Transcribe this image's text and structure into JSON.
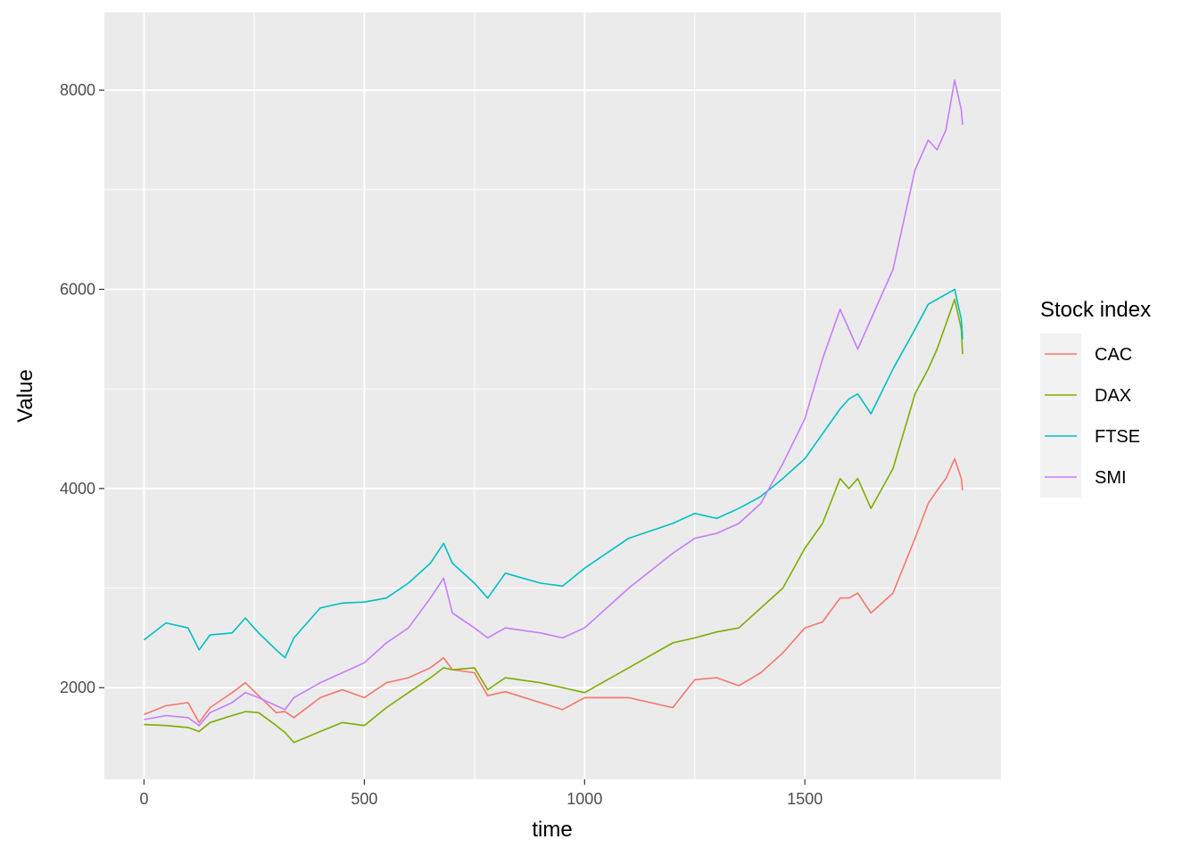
{
  "chart_data": {
    "type": "line",
    "title": "",
    "xlabel": "time",
    "ylabel": "Value",
    "xlim": [
      -90,
      1945
    ],
    "ylim": [
      1080,
      8780
    ],
    "x_ticks": [
      0,
      500,
      1000,
      1500
    ],
    "x_tick_labels": [
      "0",
      "500",
      "1000",
      "1500"
    ],
    "y_ticks": [
      2000,
      4000,
      6000,
      8000
    ],
    "y_tick_labels": [
      "2000",
      "4000",
      "6000",
      "8000"
    ],
    "grid": true,
    "legend": {
      "title": "Stock index",
      "position": "right"
    },
    "x": [
      0,
      50,
      100,
      125,
      150,
      200,
      230,
      260,
      300,
      320,
      340,
      400,
      450,
      500,
      550,
      600,
      650,
      680,
      700,
      750,
      780,
      820,
      900,
      950,
      1000,
      1100,
      1200,
      1250,
      1300,
      1350,
      1400,
      1450,
      1500,
      1540,
      1580,
      1600,
      1620,
      1650,
      1700,
      1750,
      1780,
      1800,
      1820,
      1840,
      1855,
      1858
    ],
    "series": [
      {
        "name": "CAC",
        "color": "#F8766D",
        "values": [
          1730,
          1820,
          1850,
          1650,
          1800,
          1950,
          2050,
          1920,
          1750,
          1760,
          1700,
          1900,
          1980,
          1900,
          2050,
          2100,
          2200,
          2300,
          2180,
          2150,
          1920,
          1960,
          1850,
          1780,
          1900,
          1900,
          1800,
          2080,
          2100,
          2020,
          2150,
          2350,
          2600,
          2660,
          2900,
          2900,
          2950,
          2750,
          2950,
          3500,
          3850,
          3980,
          4100,
          4300,
          4100,
          3980
        ]
      },
      {
        "name": "DAX",
        "color": "#7CAE00",
        "values": [
          1630,
          1620,
          1600,
          1560,
          1650,
          1720,
          1760,
          1750,
          1620,
          1550,
          1450,
          1560,
          1650,
          1620,
          1800,
          1950,
          2100,
          2200,
          2180,
          2200,
          1980,
          2100,
          2050,
          2000,
          1950,
          2200,
          2450,
          2500,
          2560,
          2600,
          2800,
          3000,
          3400,
          3650,
          4100,
          4000,
          4100,
          3800,
          4200,
          4950,
          5200,
          5400,
          5650,
          5900,
          5600,
          5350
        ]
      },
      {
        "name": "FTSE",
        "color": "#00BFC4",
        "values": [
          2480,
          2650,
          2600,
          2380,
          2530,
          2550,
          2700,
          2550,
          2380,
          2300,
          2500,
          2800,
          2850,
          2860,
          2900,
          3050,
          3250,
          3450,
          3250,
          3050,
          2900,
          3150,
          3050,
          3020,
          3200,
          3500,
          3650,
          3750,
          3700,
          3800,
          3920,
          4100,
          4300,
          4550,
          4800,
          4900,
          4950,
          4750,
          5200,
          5600,
          5850,
          5900,
          5950,
          6000,
          5700,
          5500
        ]
      },
      {
        "name": "SMI",
        "color": "#C77CFF",
        "values": [
          1680,
          1720,
          1700,
          1620,
          1750,
          1850,
          1950,
          1900,
          1820,
          1780,
          1900,
          2050,
          2150,
          2250,
          2450,
          2600,
          2900,
          3100,
          2750,
          2600,
          2500,
          2600,
          2550,
          2500,
          2600,
          3000,
          3350,
          3500,
          3550,
          3650,
          3850,
          4250,
          4700,
          5300,
          5800,
          5600,
          5400,
          5700,
          6200,
          7200,
          7500,
          7400,
          7600,
          8100,
          7800,
          7650
        ]
      }
    ]
  }
}
